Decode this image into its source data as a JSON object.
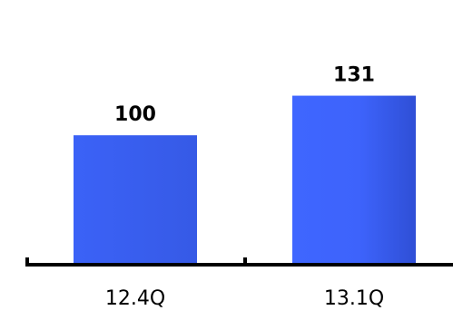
{
  "chart_data": {
    "type": "bar",
    "categories": [
      "12.4Q",
      "13.1Q"
    ],
    "values": [
      100,
      131
    ],
    "data_labels": [
      "100",
      "131"
    ],
    "ylim": [
      0,
      131
    ],
    "grid": false,
    "legend": "none",
    "colors": {
      "bar_1": "#3b60f5",
      "bar_2": "#3a5df0",
      "axis": "#000000",
      "labels": "#000000"
    }
  }
}
